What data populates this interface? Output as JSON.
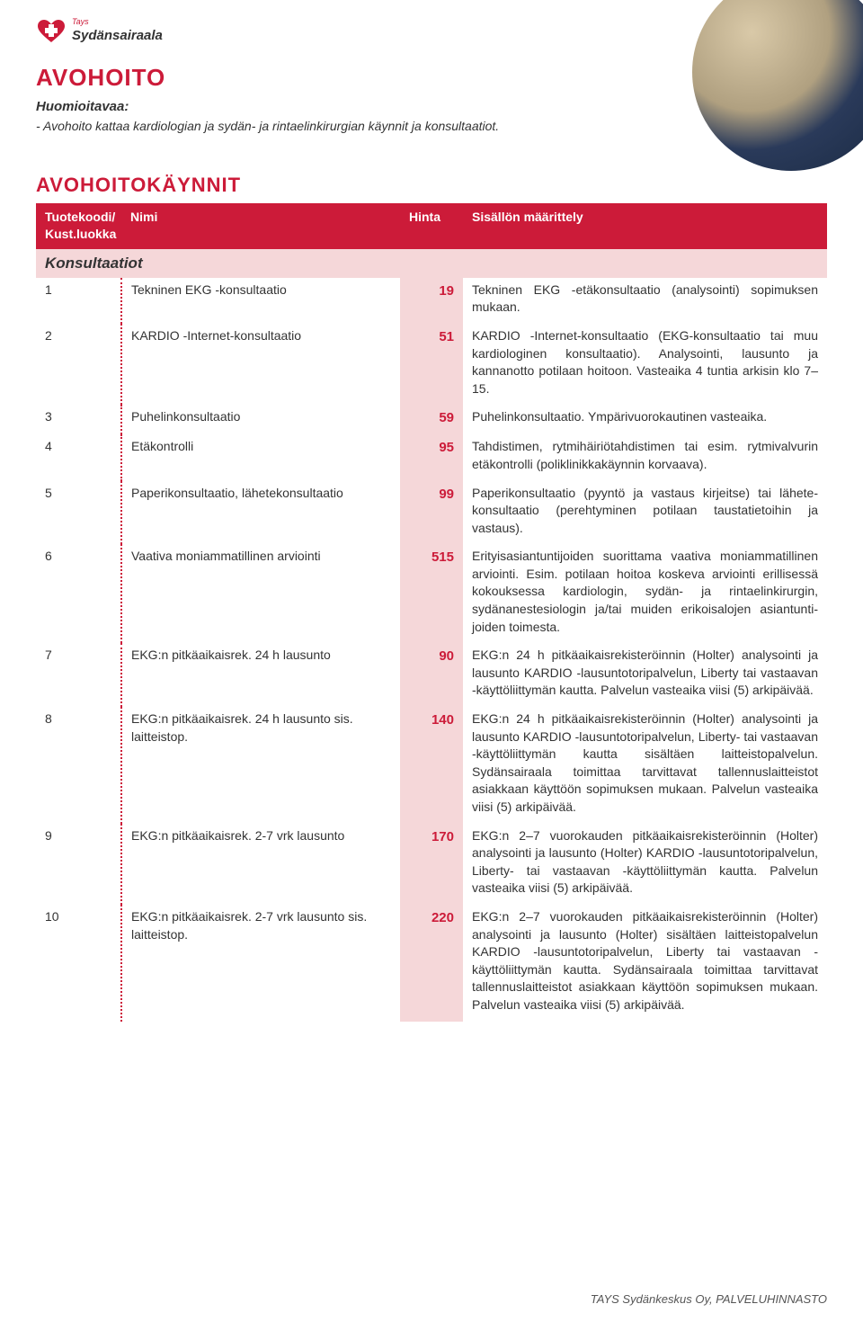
{
  "logo": {
    "brand": "Sydänsairaala",
    "tagline_small": "Tays"
  },
  "photo": {
    "alt": "clinical-photo"
  },
  "header": {
    "title": "AVOHOITO",
    "subhead": "Huomioitavaa:",
    "bullet": "- Avohoito kattaa kardiologian ja sydän- ja rintaelinkirurgian käynnit ja konsultaatiot."
  },
  "section": {
    "title": "AVOHOITOKÄYNNIT",
    "columns": {
      "code_line1": "Tuotekoodi/",
      "code_line2": "Kust.luokka",
      "name": "Nimi",
      "price": "Hinta",
      "desc": "Sisällön määrittely"
    },
    "group_label": "Konsultaatiot",
    "rows": [
      {
        "code": "1",
        "name": "Tekninen EKG -konsultaatio",
        "price": "19",
        "desc": "Tekninen EKG -etäkonsultaatio (analysointi) sopimuksen mukaan."
      },
      {
        "code": "2",
        "name": "KARDIO -Internet-konsultaatio",
        "price": "51",
        "desc": "KARDIO -Internet-konsultaatio (EKG-konsultaatio tai muu kardiologinen konsultaatio). Analysointi, lausunto ja kannanotto potilaan hoitoon. Vasteaika 4 tuntia arkisin klo 7–15."
      },
      {
        "code": "3",
        "name": "Puhelinkonsultaatio",
        "price": "59",
        "desc": "Puhelinkonsultaatio. Ympärivuorokautinen vasteaika."
      },
      {
        "code": "4",
        "name": "Etäkontrolli",
        "price": "95",
        "desc": "Tahdistimen, rytmihäiriötahdistimen tai esim. rytmi­valvurin etäkontrolli (poliklinikkakäynnin korvaava)."
      },
      {
        "code": "5",
        "name": "Paperikonsultaatio, lähetekonsultaatio",
        "price": "99",
        "desc": "Paperikonsultaatio (pyyntö ja vastaus kirjeitse) tai lähete­konsultaatio (perehtyminen potilaan taustatietoihin ja vastaus)."
      },
      {
        "code": "6",
        "name": "Vaativa moniammatillinen arviointi",
        "price": "515",
        "desc": "Erityisasiantuntijoiden suorittama vaativa moniammatilli­nen arviointi. Esim. potilaan hoitoa koskeva arviointi eril­lisessä kokouksessa kardiologin, sydän- ja rintaelinkirurgin, sydänanestesiologin ja/tai muiden erikoisalojen asiantunti­joiden toimesta."
      },
      {
        "code": "7",
        "name": "EKG:n pitkäaikaisrek. 24 h lausunto",
        "price": "90",
        "desc": "EKG:n 24 h pitkäaikaisrekisteröinnin (Holter) analysointi ja lausunto KARDIO -lausuntotoripalvelun, Liberty tai vastaa­van -käyttöliittymän kautta. Palvelun vasteaika viisi (5) arkipäivää."
      },
      {
        "code": "8",
        "name": "EKG:n pitkäaikaisrek. 24 h lausunto sis. laitteistop.",
        "price": "140",
        "desc": "EKG:n 24 h pitkäaikaisrekisteröinnin (Holter) analysointi ja lausunto KARDIO -lausuntotoripalvelun, Liberty- tai vas­taavan -käyttöliittymän kautta sisältäen laitteistopalve­lun. Sydänsairaala toimittaa tarvittavat tallennuslaitteistot asiakkaan käyttöön sopimuksen mukaan. Palvelun vasteai­ka viisi (5) arkipäivää."
      },
      {
        "code": "9",
        "name": "EKG:n pitkäaikaisrek. 2-7 vrk lausunto",
        "price": "170",
        "desc": "EKG:n 2–7 vuorokauden pitkäaikaisrekisteröinnin (Holter) analysointi ja lausunto (Holter) KARDIO -lausuntotoripalve­lun, Liberty- tai vastaavan -käyttöliittymän kautta. Palve­lun vasteaika viisi (5) arkipäivää."
      },
      {
        "code": "10",
        "name": "EKG:n pitkäaikaisrek. 2-7 vrk lausunto sis. laitteistop.",
        "price": "220",
        "desc": "EKG:n 2–7 vuorokauden pitkäaikaisrekisteröinnin (Holter) analysointi ja lausunto (Holter) sisältäen laitteistopalve­lun KARDIO -lausuntotoripalvelun, Liberty tai vastaavan -käyttöliittymän kautta. Sydänsairaala toimittaa tarvitta­vat tallennuslaitteistot asiakkaan käyttöön sopimuksen mu­kaan. Palvelun vasteaika viisi (5) arkipäivää."
      }
    ]
  },
  "footer": "TAYS Sydänkeskus Oy, PALVELUHINNASTO",
  "colors": {
    "brand_red": "#cc1b39",
    "pink_bg": "#f5d7d9",
    "text": "#333333"
  }
}
